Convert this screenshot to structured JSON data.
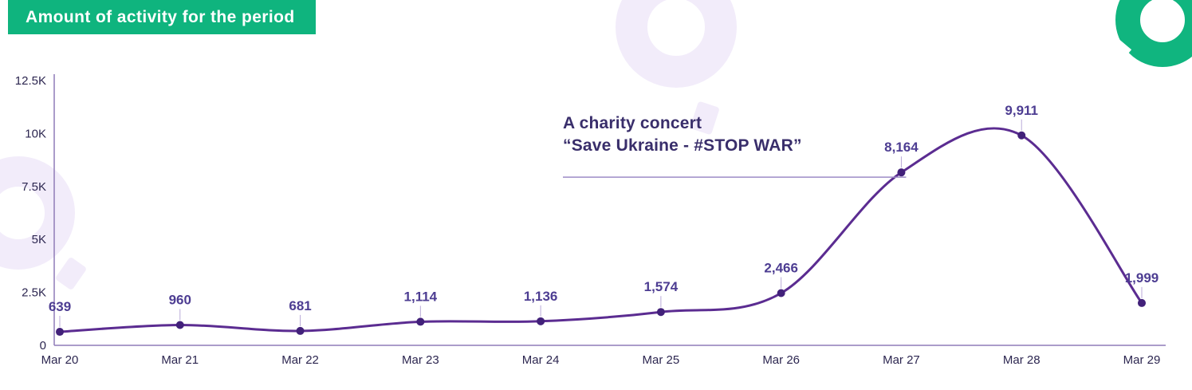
{
  "header": {
    "title": "Amount of activity for the period"
  },
  "annotation": {
    "line1": "A charity concert",
    "line2": "“Save Ukraine - #STOP WAR”"
  },
  "icons": {
    "corner_logo": "brand-ring-logo",
    "watermarks": "brand-logo-watermark"
  },
  "colors": {
    "header_bg": "#0fb47e",
    "line": "#5b2c91",
    "point": "#42217a",
    "point_label": "#4d3d92",
    "axis": "#8f7cb8",
    "annotation_text": "#392e6b",
    "annotation_underline": "#9d8cc6",
    "watermark": "#f2ecfa"
  },
  "chart_data": {
    "type": "line",
    "title": "Amount of activity for the period",
    "x": [
      "Mar 20",
      "Mar 21",
      "Mar 22",
      "Mar 23",
      "Mar 24",
      "Mar 25",
      "Mar 26",
      "Mar 27",
      "Mar 28",
      "Mar 29"
    ],
    "values": [
      639,
      960,
      681,
      1114,
      1136,
      1574,
      2466,
      8164,
      9911,
      1999
    ],
    "point_labels": [
      "639",
      "960",
      "681",
      "1,114",
      "1,136",
      "1,574",
      "2,466",
      "8,164",
      "9,911",
      "1,999"
    ],
    "xlabel": "",
    "ylabel": "",
    "ylim": [
      0,
      12500
    ],
    "y_ticks": [
      0,
      2500,
      5000,
      7500,
      10000,
      12500
    ],
    "y_tick_labels": [
      "0",
      "2.5K",
      "5K",
      "7.5K",
      "10K",
      "12.5K"
    ],
    "grid": false,
    "legend": "none",
    "line_color": "#5b2c91",
    "point_color": "#42217a",
    "annotation": {
      "line1": "A charity concert",
      "line2": "“Save Ukraine - #STOP WAR”",
      "target": "Mar 27"
    }
  }
}
